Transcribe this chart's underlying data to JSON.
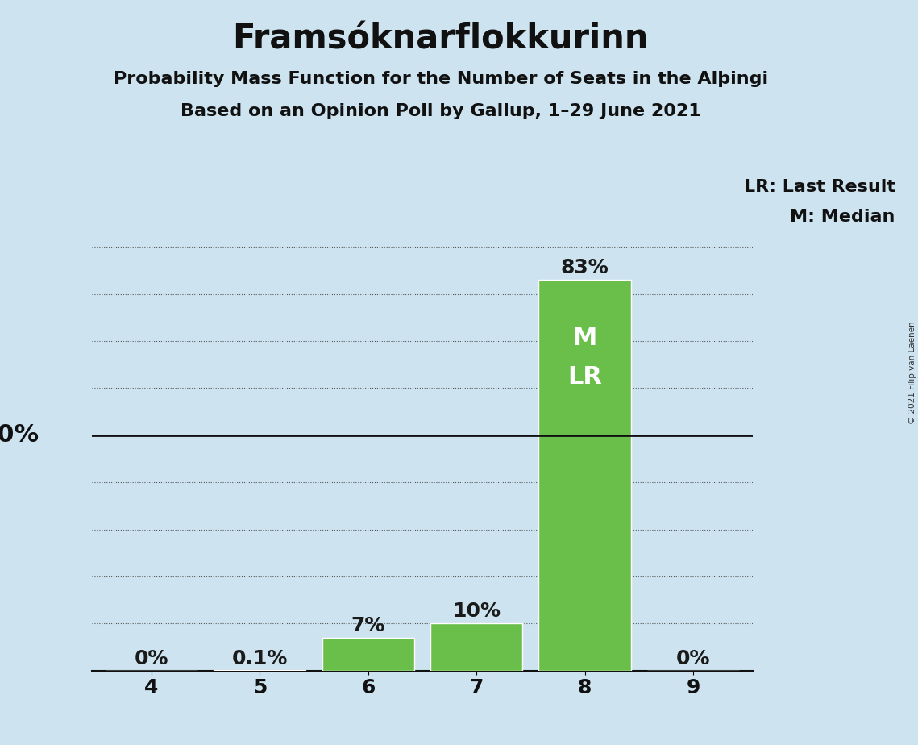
{
  "title": "Framsóknarflokkurinn",
  "subtitle1": "Probability Mass Function for the Number of Seats in the Alþingi",
  "subtitle2": "Based on an Opinion Poll by Gallup, 1–29 June 2021",
  "copyright": "© 2021 Filip van Laenen",
  "categories": [
    4,
    5,
    6,
    7,
    8,
    9
  ],
  "values": [
    0.0,
    0.001,
    0.07,
    0.1,
    0.83,
    0.0
  ],
  "bar_labels": [
    "0%",
    "0.1%",
    "7%",
    "10%",
    "83%",
    "0%"
  ],
  "bar_color": "#6abf4b",
  "background_color": "#cde4f0",
  "median_seat": 8,
  "last_result_seat": 8,
  "inside_label": "M\nLR",
  "legend_lr": "LR: Last Result",
  "legend_m": "M: Median",
  "fifty_pct_line": 0.5,
  "ylim": [
    0,
    0.95
  ],
  "dotted_yticks": [
    0.1,
    0.2,
    0.3,
    0.4,
    0.6,
    0.7,
    0.8,
    0.9
  ],
  "title_fontsize": 30,
  "subtitle_fontsize": 16,
  "tick_fontsize": 18,
  "bar_label_fontsize": 18,
  "legend_fontsize": 16,
  "fifty_label_fontsize": 22,
  "inside_label_fontsize": 22,
  "bar_label_color_inside": "#ffffff",
  "bar_label_color_outside": "#1a1a1a",
  "fifty_line_color": "#111111",
  "dotted_line_color": "#555555",
  "text_color": "#111111"
}
